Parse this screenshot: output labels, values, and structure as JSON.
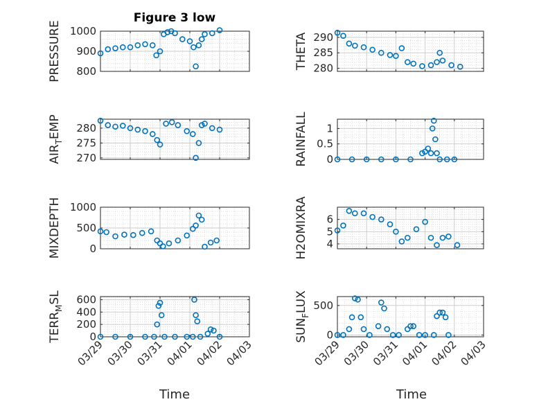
{
  "figure": {
    "title": "Figure 3 low",
    "xlabel": "Time",
    "marker_color": "#0072BD"
  },
  "chart_data": [
    {
      "type": "scatter",
      "ylabel": "PRESSURE",
      "ylim": [
        800,
        1000
      ],
      "yticks": [
        800,
        900,
        1000
      ],
      "xlim": [
        "03/29",
        "04/03"
      ],
      "xticks": [
        "03/29",
        "03/30",
        "03/31",
        "04/01",
        "04/02",
        "04/03"
      ],
      "show_xticklabels": false,
      "x": [
        "03/29 00:00",
        "03/29 06:00",
        "03/29 12:00",
        "03/29 18:00",
        "03/30 00:00",
        "03/30 06:00",
        "03/30 12:00",
        "03/30 18:00",
        "03/30 21:00",
        "03/31 00:00",
        "03/31 03:00",
        "03/31 06:00",
        "03/31 09:00",
        "03/31 12:00",
        "03/31 18:00",
        "04/01 00:00",
        "04/01 03:00",
        "04/01 04:48",
        "04/01 07:12",
        "04/01 09:36",
        "04/01 12:00",
        "04/01 18:00",
        "04/02 00:00"
      ],
      "y": [
        890,
        910,
        915,
        920,
        920,
        930,
        935,
        930,
        880,
        900,
        985,
        995,
        1000,
        990,
        960,
        950,
        920,
        825,
        930,
        960,
        985,
        990,
        1005
      ]
    },
    {
      "type": "scatter",
      "ylabel": "THETA",
      "ylim": [
        279,
        292
      ],
      "yticks": [
        280,
        285,
        290
      ],
      "xlim": [
        "03/29",
        "04/03"
      ],
      "xticks": [
        "03/29",
        "03/30",
        "03/31",
        "04/01",
        "04/02",
        "04/03"
      ],
      "show_xticklabels": false,
      "x": [
        "03/29 00:00",
        "03/29 04:48",
        "03/29 09:36",
        "03/29 14:24",
        "03/29 21:36",
        "03/30 04:48",
        "03/30 12:00",
        "03/30 19:12",
        "03/31 00:00",
        "03/31 04:48",
        "03/31 09:36",
        "03/31 14:24",
        "03/31 21:36",
        "04/01 04:48",
        "04/01 09:36",
        "04/01 12:00",
        "04/01 14:24",
        "04/01 21:36",
        "04/02 04:48"
      ],
      "y": [
        291.5,
        290.5,
        288,
        287.3,
        286.8,
        286,
        285,
        284.3,
        284,
        286.5,
        282,
        281.5,
        280.7,
        281,
        282,
        285,
        282.5,
        281,
        280.5
      ]
    },
    {
      "type": "scatter",
      "ylabel": "AIR_TEMP",
      "ylim": [
        269.5,
        283
      ],
      "yticks": [
        270,
        275,
        280
      ],
      "xlim": [
        "03/29",
        "04/03"
      ],
      "xticks": [
        "03/29",
        "03/30",
        "03/31",
        "04/01",
        "04/02",
        "04/03"
      ],
      "show_xticklabels": false,
      "x": [
        "03/29 00:00",
        "03/29 06:00",
        "03/29 12:00",
        "03/29 18:00",
        "03/30 00:00",
        "03/30 06:00",
        "03/30 12:00",
        "03/30 18:00",
        "03/30 21:36",
        "03/31 00:00",
        "03/31 04:48",
        "03/31 09:36",
        "03/31 14:24",
        "03/31 21:36",
        "04/01 02:24",
        "04/01 04:48",
        "04/01 07:12",
        "04/01 09:36",
        "04/01 12:00",
        "04/01 18:00",
        "04/02 00:00"
      ],
      "y": [
        282.5,
        281,
        280.5,
        280.8,
        280,
        279.5,
        279,
        278,
        276,
        274.5,
        281.5,
        282,
        281,
        279,
        278,
        270,
        275,
        281,
        281.5,
        280,
        279.5
      ]
    },
    {
      "type": "scatter",
      "ylabel": "RAINFALL",
      "ylim": [
        0,
        1.3
      ],
      "yticks": [
        0,
        0.5,
        1
      ],
      "xlim": [
        "03/29",
        "04/03"
      ],
      "xticks": [
        "03/29",
        "03/30",
        "03/31",
        "04/01",
        "04/02",
        "04/03"
      ],
      "show_xticklabels": false,
      "x": [
        "03/29 00:00",
        "03/29 12:00",
        "03/30 00:00",
        "03/30 12:00",
        "03/31 00:00",
        "03/31 12:00",
        "03/31 21:36",
        "04/01 00:00",
        "04/01 02:24",
        "04/01 04:48",
        "04/01 06:00",
        "04/01 07:12",
        "04/01 08:24",
        "04/01 09:36",
        "04/01 12:00",
        "04/01 18:00",
        "04/02 00:00"
      ],
      "y": [
        0,
        0,
        0,
        0,
        0,
        0,
        0.2,
        0.25,
        0.35,
        0.2,
        1.0,
        1.25,
        0.65,
        0.2,
        0,
        0,
        0
      ]
    },
    {
      "type": "scatter",
      "ylabel": "MIXDEPTH",
      "ylim": [
        0,
        1000
      ],
      "yticks": [
        0,
        500,
        1000
      ],
      "xlim": [
        "03/29",
        "04/03"
      ],
      "xticks": [
        "03/29",
        "03/30",
        "03/31",
        "04/01",
        "04/02",
        "04/03"
      ],
      "show_xticklabels": false,
      "x": [
        "03/29 00:00",
        "03/29 04:48",
        "03/29 12:00",
        "03/29 19:12",
        "03/30 02:24",
        "03/30 09:36",
        "03/30 16:48",
        "03/30 21:36",
        "03/31 00:00",
        "03/31 02:24",
        "03/31 07:12",
        "03/31 14:24",
        "03/31 21:36",
        "04/01 02:24",
        "04/01 04:48",
        "04/01 07:12",
        "04/01 09:36",
        "04/01 12:00",
        "04/01 16:48",
        "04/01 21:36"
      ],
      "y": [
        420,
        400,
        300,
        340,
        330,
        380,
        420,
        200,
        130,
        60,
        130,
        200,
        320,
        480,
        560,
        800,
        700,
        50,
        150,
        200
      ]
    },
    {
      "type": "scatter",
      "ylabel": "H2OMIXRA",
      "ylim": [
        3.6,
        7
      ],
      "yticks": [
        4,
        5,
        6
      ],
      "xlim": [
        "03/29",
        "04/03"
      ],
      "xticks": [
        "03/29",
        "03/30",
        "03/31",
        "04/01",
        "04/02",
        "04/03"
      ],
      "show_xticklabels": false,
      "x": [
        "03/29 00:00",
        "03/29 04:48",
        "03/29 09:36",
        "03/29 14:24",
        "03/29 21:36",
        "03/30 04:48",
        "03/30 12:00",
        "03/30 19:12",
        "03/31 00:00",
        "03/31 04:48",
        "03/31 09:36",
        "03/31 16:48",
        "04/01 00:00",
        "04/01 04:48",
        "04/01 09:36",
        "04/01 14:24",
        "04/01 19:12",
        "04/02 02:24"
      ],
      "y": [
        5.1,
        5.5,
        6.7,
        6.5,
        6.5,
        6.2,
        6.0,
        5.6,
        5.0,
        4.2,
        4.5,
        5.2,
        5.8,
        4.5,
        3.9,
        4.5,
        4.6,
        3.9
      ]
    },
    {
      "type": "scatter",
      "ylabel": "TERR_MSL",
      "ylim": [
        0,
        650
      ],
      "yticks": [
        0,
        200,
        400,
        600
      ],
      "xlim": [
        "03/29",
        "04/03"
      ],
      "xticks": [
        "03/29",
        "03/30",
        "03/31",
        "04/01",
        "04/02",
        "04/03"
      ],
      "show_xticklabels": true,
      "x": [
        "03/29 00:00",
        "03/29 12:00",
        "03/30 00:00",
        "03/30 12:00",
        "03/30 19:12",
        "03/30 21:36",
        "03/30 22:48",
        "03/31 00:00",
        "03/31 01:12",
        "03/31 03:36",
        "03/31 12:00",
        "03/31 21:36",
        "04/01 02:24",
        "04/01 03:36",
        "04/01 04:48",
        "04/01 06:00",
        "04/01 08:24",
        "04/01 14:24",
        "04/01 16:48",
        "04/01 19:12",
        "04/02 00:00"
      ],
      "y": [
        0,
        0,
        0,
        0,
        0,
        200,
        500,
        550,
        350,
        0,
        0,
        0,
        0,
        600,
        350,
        250,
        0,
        50,
        120,
        100,
        0
      ]
    },
    {
      "type": "scatter",
      "ylabel": "SUN_FLUX",
      "ylim": [
        -30,
        650
      ],
      "yticks": [
        0,
        500
      ],
      "xlim": [
        "03/29",
        "04/03"
      ],
      "xticks": [
        "03/29",
        "03/30",
        "03/31",
        "04/01",
        "04/02",
        "04/03"
      ],
      "show_xticklabels": true,
      "x": [
        "03/29 00:00",
        "03/29 04:48",
        "03/29 09:36",
        "03/29 12:00",
        "03/29 14:24",
        "03/29 16:48",
        "03/29 19:12",
        "03/29 21:36",
        "03/30 02:24",
        "03/30 09:36",
        "03/30 12:00",
        "03/30 14:24",
        "03/30 16:48",
        "03/30 21:36",
        "03/31 02:24",
        "03/31 09:36",
        "03/31 12:00",
        "03/31 14:24",
        "03/31 19:12",
        "04/01 00:00",
        "04/01 07:12",
        "04/01 09:36",
        "04/01 12:00",
        "04/01 14:24",
        "04/01 16:48",
        "04/01 19:12"
      ],
      "y": [
        0,
        0,
        100,
        300,
        620,
        600,
        300,
        100,
        0,
        150,
        550,
        450,
        100,
        0,
        0,
        100,
        150,
        150,
        0,
        0,
        0,
        320,
        380,
        380,
        300,
        0
      ]
    }
  ]
}
